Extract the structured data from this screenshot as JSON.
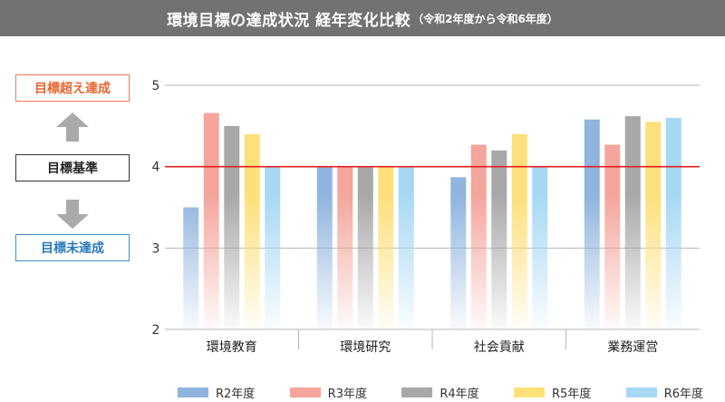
{
  "header": {
    "title": "環境目標の達成状況 経年変化比較",
    "subtitle": "（令和2年度から令和6年度）"
  },
  "side_labels": {
    "above": "目標超え達成",
    "standard": "目標基準",
    "below": "目標未達成"
  },
  "colors": {
    "above_accent": "#e8642e",
    "below_accent": "#2a79bb",
    "standard_line": "#e02020",
    "arrow": "#aaaaaa"
  },
  "chart_data": {
    "type": "bar",
    "categories": [
      "環境教育",
      "環境研究",
      "社会貢献",
      "業務運営"
    ],
    "series": [
      {
        "name": "R2年度",
        "color": "#8fb4de",
        "values": [
          3.5,
          4.0,
          3.87,
          4.58
        ]
      },
      {
        "name": "R3年度",
        "color": "#f4a59c",
        "values": [
          4.66,
          4.0,
          4.27,
          4.27
        ]
      },
      {
        "name": "R4年度",
        "color": "#a8a8a8",
        "values": [
          4.5,
          4.0,
          4.2,
          4.62
        ]
      },
      {
        "name": "R5年度",
        "color": "#fde07a",
        "values": [
          4.4,
          4.0,
          4.4,
          4.55
        ]
      },
      {
        "name": "R6年度",
        "color": "#a6d8f4",
        "values": [
          4.0,
          4.0,
          4.0,
          4.6
        ]
      }
    ],
    "yticks": [
      2,
      3,
      4,
      5
    ],
    "ylim": [
      2,
      5
    ],
    "reference_line": 4,
    "grid": true,
    "legend_position": "bottom"
  }
}
